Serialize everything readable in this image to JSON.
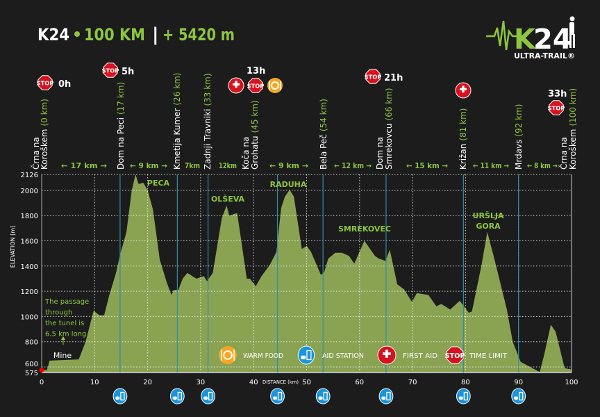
{
  "header": {
    "brand": "K24",
    "distance": "100 KM",
    "separator": "|",
    "elevation_gain": "+ 5420 m",
    "logo": {
      "text": "K24",
      "subtitle": "ULTRA-TRAIL®"
    }
  },
  "colors": {
    "background": "#1c1c1c",
    "profile_fill": "#8aa353",
    "accent_green": "#8dc63f",
    "station_line": "#2a8fa8",
    "stop_red": "#d7121f",
    "aid_blue": "#1b95d8",
    "food_orange": "#f5a623"
  },
  "chart_data": {
    "type": "area",
    "xlabel": "DISTANCE (km)",
    "ylabel": "ELEVATION [m]",
    "xlim": [
      0,
      100
    ],
    "ylim": [
      575,
      2126
    ],
    "x_ticks": [
      "0",
      "10",
      "20",
      "30",
      "40",
      "50",
      "60",
      "70",
      "80",
      "90",
      "100"
    ],
    "y_ticks": [
      "575",
      "600",
      "800",
      "1000",
      "1200",
      "1400",
      "1600",
      "1800",
      "2000",
      "2126"
    ],
    "grid": true,
    "profile": [
      [
        0,
        575
      ],
      [
        1,
        575
      ],
      [
        1.5,
        650
      ],
      [
        7,
        660
      ],
      [
        8.3,
        800
      ],
      [
        9.8,
        1045
      ],
      [
        10.9,
        1010
      ],
      [
        11.8,
        1010
      ],
      [
        12.7,
        1160
      ],
      [
        14,
        1340
      ],
      [
        14.8,
        1490
      ],
      [
        16,
        1670
      ],
      [
        17,
        2000
      ],
      [
        17.7,
        2126
      ],
      [
        18.3,
        2050
      ],
      [
        19.2,
        2060
      ],
      [
        20,
        2000
      ],
      [
        21,
        1850
      ],
      [
        22.3,
        1450
      ],
      [
        23.6,
        1270
      ],
      [
        24.5,
        1170
      ],
      [
        24.9,
        1210
      ],
      [
        25.8,
        1210
      ],
      [
        26.6,
        1300
      ],
      [
        27.5,
        1345
      ],
      [
        29.2,
        1300
      ],
      [
        30.6,
        1320
      ],
      [
        31.2,
        1280
      ],
      [
        32.3,
        1345
      ],
      [
        34,
        1780
      ],
      [
        34.9,
        1880
      ],
      [
        35.4,
        1800
      ],
      [
        36.9,
        1820
      ],
      [
        37.7,
        1590
      ],
      [
        38.7,
        1300
      ],
      [
        39.3,
        1300
      ],
      [
        40.4,
        1240
      ],
      [
        41.5,
        1320
      ],
      [
        43,
        1405
      ],
      [
        44.3,
        1510
      ],
      [
        45.2,
        1860
      ],
      [
        45.9,
        1950
      ],
      [
        46.8,
        2005
      ],
      [
        47.6,
        1950
      ],
      [
        48.5,
        1700
      ],
      [
        49.1,
        1535
      ],
      [
        50,
        1560
      ],
      [
        50.8,
        1515
      ],
      [
        52.7,
        1330
      ],
      [
        53.3,
        1350
      ],
      [
        54.1,
        1460
      ],
      [
        55.4,
        1505
      ],
      [
        56.7,
        1505
      ],
      [
        58,
        1480
      ],
      [
        59,
        1420
      ],
      [
        60.9,
        1600
      ],
      [
        62.9,
        1480
      ],
      [
        63.6,
        1460
      ],
      [
        64.9,
        1440
      ],
      [
        65.7,
        1530
      ],
      [
        67.1,
        1255
      ],
      [
        68.4,
        1215
      ],
      [
        69.9,
        1115
      ],
      [
        70.8,
        1185
      ],
      [
        73,
        1170
      ],
      [
        74.5,
        1080
      ],
      [
        75.4,
        1100
      ],
      [
        77.1,
        1055
      ],
      [
        78.9,
        1125
      ],
      [
        80.6,
        1030
      ],
      [
        81.2,
        1040
      ],
      [
        83,
        1405
      ],
      [
        84.1,
        1670
      ],
      [
        85.6,
        1430
      ],
      [
        87.8,
        1055
      ],
      [
        88.9,
        800
      ],
      [
        90.4,
        640
      ],
      [
        94,
        560
      ],
      [
        94.8,
        690
      ],
      [
        96.1,
        935
      ],
      [
        97,
        880
      ],
      [
        98.7,
        590
      ],
      [
        100,
        580
      ]
    ],
    "peaks": [
      {
        "name": "PECA",
        "km": 17.7,
        "elevation": 2126
      },
      {
        "name": "OLŠEVA",
        "km": 34.9,
        "elevation": 1880
      },
      {
        "name": "RADUHA",
        "km": 46.8,
        "elevation": 2005
      },
      {
        "name": "SMREKOVEC",
        "km": 60.9,
        "elevation": 1600
      },
      {
        "name": "URŠLJA",
        "name2": "GORA",
        "km": 84.1,
        "elevation": 1670
      }
    ],
    "stations": [
      {
        "name": [
          "Črna na",
          "Koroškem"
        ],
        "km_label": "(0 km)",
        "axis_km": 0,
        "aid": false
      },
      {
        "name": [
          "Dom na Peci"
        ],
        "km_label": "(17 km)",
        "axis_km": 14.8,
        "aid": true
      },
      {
        "name": [
          "Kmetija Kumer"
        ],
        "km_label": "(26 km)",
        "axis_km": 25.6,
        "aid": true
      },
      {
        "name": [
          "Zadnji Travniki"
        ],
        "km_label": "(33 km)",
        "axis_km": 31.4,
        "aid": true
      },
      {
        "name": [
          "Koča na",
          "Grohatu"
        ],
        "km_label": "(45 km)",
        "axis_km": 44.5,
        "aid": true
      },
      {
        "name": [
          "Bela Peč"
        ],
        "km_label": "(54 km)",
        "axis_km": 53.1,
        "aid": true
      },
      {
        "name": [
          "Dom na",
          "Smrekovcu"
        ],
        "km_label": "(66 km)",
        "axis_km": 65,
        "aid": true
      },
      {
        "name": [
          "Križan"
        ],
        "km_label": "(81 km)",
        "axis_km": 79.6,
        "aid": true
      },
      {
        "name": [
          "Mrdavs"
        ],
        "km_label": "(92 km)",
        "axis_km": 90,
        "aid": true
      },
      {
        "name": [
          "Črna na",
          "Koroškem"
        ],
        "km_label": "(100 km)",
        "axis_km": 100,
        "aid": false
      }
    ],
    "segments": [
      "← 17 km →",
      "← 9 km →",
      "7km",
      "12km",
      "← 9 km →",
      "← 12 km →",
      "← 15 km →",
      "← 11 km →",
      "← 8 km →"
    ],
    "time_limits": [
      {
        "time": "0h",
        "icons": [
          "stop"
        ]
      },
      {
        "time": "5h",
        "icons": [
          "stop"
        ]
      },
      {
        "time": "13h",
        "icons": [
          "first-aid",
          "stop",
          "warm-food"
        ]
      },
      {
        "time": "21h",
        "icons": [
          "stop"
        ]
      },
      {
        "time": "",
        "icons": [
          "first-aid"
        ]
      },
      {
        "time": "33h",
        "icons": [
          "stop"
        ]
      }
    ],
    "annotations": {
      "tunnel": [
        "The passage",
        "through",
        "the tunel is",
        "6.5 km long"
      ],
      "mine": "Mine"
    }
  },
  "legend": [
    {
      "icon": "warm-food",
      "label": "WARM FOOD"
    },
    {
      "icon": "aid-station",
      "label": "AID STATION"
    },
    {
      "icon": "first-aid",
      "label": "FIRST AID"
    },
    {
      "icon": "stop",
      "label": "TIME LIMIT"
    }
  ],
  "icon_text": {
    "stop": "STOP",
    "first_aid": "FIRST AID"
  }
}
